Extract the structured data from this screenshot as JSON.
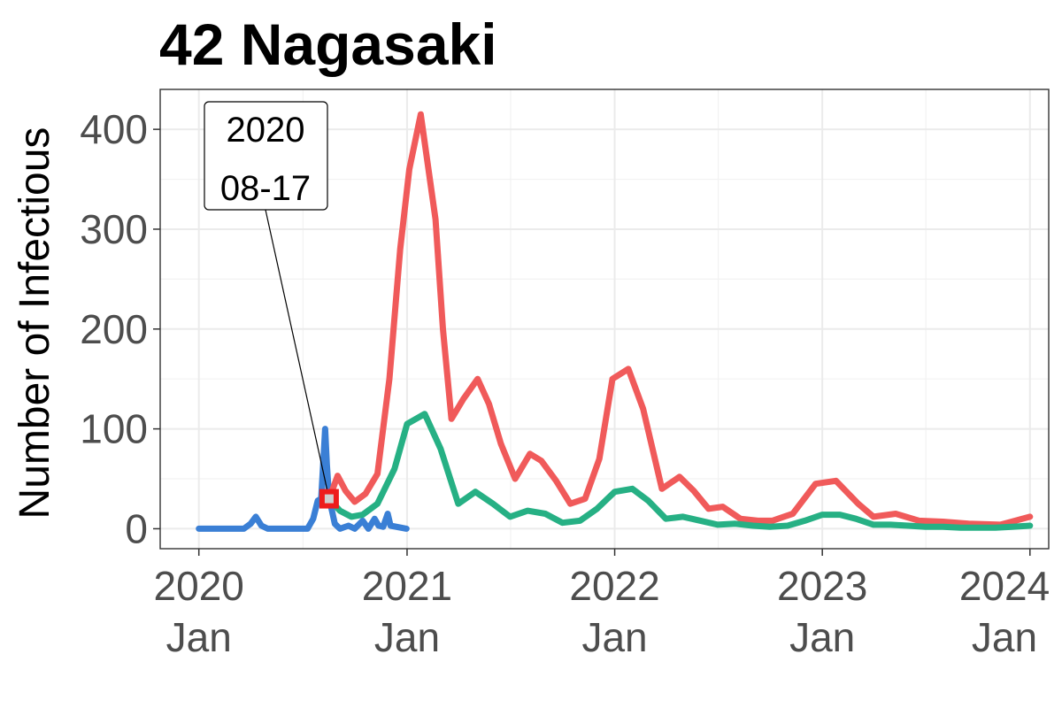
{
  "chart_data": {
    "type": "line",
    "title": "42 Nagasaki",
    "ylabel": "Number of Infectious",
    "xlabel": "",
    "x_range": [
      "2019-10-25",
      "2024-02-03"
    ],
    "ylim": [
      -20,
      440
    ],
    "y_ticks": [
      0,
      100,
      200,
      300,
      400
    ],
    "x_ticks": [
      {
        "date": "2020-01-01",
        "line1": "2020",
        "line2": "Jan"
      },
      {
        "date": "2021-01-01",
        "line1": "2021",
        "line2": "Jan"
      },
      {
        "date": "2022-01-01",
        "line1": "2022",
        "line2": "Jan"
      },
      {
        "date": "2023-01-01",
        "line1": "2023",
        "line2": "Jan"
      },
      {
        "date": "2024-01-01",
        "line1": "2024",
        "line2": "Jan"
      }
    ],
    "grid": true,
    "series": [
      {
        "color": "#3a7fd5",
        "points": [
          [
            "2020-01-01",
            0
          ],
          [
            "2020-03-20",
            0
          ],
          [
            "2020-04-01",
            5
          ],
          [
            "2020-04-10",
            12
          ],
          [
            "2020-04-20",
            3
          ],
          [
            "2020-05-01",
            0
          ],
          [
            "2020-07-10",
            0
          ],
          [
            "2020-07-20",
            10
          ],
          [
            "2020-07-28",
            28
          ],
          [
            "2020-08-03",
            30
          ],
          [
            "2020-08-07",
            70
          ],
          [
            "2020-08-10",
            100
          ],
          [
            "2020-08-13",
            65
          ],
          [
            "2020-08-17",
            30
          ],
          [
            "2020-08-22",
            18
          ],
          [
            "2020-08-27",
            5
          ],
          [
            "2020-09-05",
            0
          ],
          [
            "2020-09-20",
            3
          ],
          [
            "2020-10-01",
            0
          ],
          [
            "2020-10-15",
            8
          ],
          [
            "2020-10-25",
            0
          ],
          [
            "2020-11-05",
            10
          ],
          [
            "2020-11-12",
            3
          ],
          [
            "2020-11-20",
            2
          ],
          [
            "2020-11-28",
            15
          ],
          [
            "2020-12-03",
            3
          ],
          [
            "2020-12-31",
            0
          ]
        ]
      },
      {
        "color": "#f05a5a",
        "points": [
          [
            "2020-08-17",
            30
          ],
          [
            "2020-09-01",
            53
          ],
          [
            "2020-09-15",
            38
          ],
          [
            "2020-10-01",
            27
          ],
          [
            "2020-10-20",
            35
          ],
          [
            "2020-11-10",
            55
          ],
          [
            "2020-12-01",
            150
          ],
          [
            "2020-12-20",
            280
          ],
          [
            "2021-01-05",
            360
          ],
          [
            "2021-01-25",
            415
          ],
          [
            "2021-02-20",
            310
          ],
          [
            "2021-03-05",
            200
          ],
          [
            "2021-03-20",
            110
          ],
          [
            "2021-04-10",
            130
          ],
          [
            "2021-05-05",
            150
          ],
          [
            "2021-05-25",
            125
          ],
          [
            "2021-06-15",
            85
          ],
          [
            "2021-07-10",
            50
          ],
          [
            "2021-08-05",
            75
          ],
          [
            "2021-08-25",
            68
          ],
          [
            "2021-09-20",
            48
          ],
          [
            "2021-10-15",
            25
          ],
          [
            "2021-11-10",
            30
          ],
          [
            "2021-12-05",
            70
          ],
          [
            "2021-12-28",
            150
          ],
          [
            "2022-01-25",
            160
          ],
          [
            "2022-02-20",
            120
          ],
          [
            "2022-03-25",
            40
          ],
          [
            "2022-04-25",
            52
          ],
          [
            "2022-05-20",
            38
          ],
          [
            "2022-06-15",
            20
          ],
          [
            "2022-07-10",
            22
          ],
          [
            "2022-08-10",
            10
          ],
          [
            "2022-09-10",
            8
          ],
          [
            "2022-10-05",
            8
          ],
          [
            "2022-11-10",
            15
          ],
          [
            "2022-12-20",
            45
          ],
          [
            "2023-01-25",
            48
          ],
          [
            "2023-03-05",
            25
          ],
          [
            "2023-04-01",
            12
          ],
          [
            "2023-05-10",
            15
          ],
          [
            "2023-06-20",
            8
          ],
          [
            "2023-08-01",
            7
          ],
          [
            "2023-09-15",
            5
          ],
          [
            "2023-11-10",
            4
          ],
          [
            "2024-01-01",
            12
          ]
        ]
      },
      {
        "color": "#26b084",
        "points": [
          [
            "2020-08-17",
            30
          ],
          [
            "2020-09-05",
            18
          ],
          [
            "2020-09-25",
            12
          ],
          [
            "2020-10-15",
            14
          ],
          [
            "2020-11-10",
            25
          ],
          [
            "2020-12-10",
            60
          ],
          [
            "2021-01-01",
            105
          ],
          [
            "2021-02-01",
            115
          ],
          [
            "2021-03-01",
            80
          ],
          [
            "2021-04-01",
            25
          ],
          [
            "2021-05-01",
            37
          ],
          [
            "2021-06-01",
            25
          ],
          [
            "2021-07-01",
            12
          ],
          [
            "2021-08-01",
            18
          ],
          [
            "2021-09-01",
            15
          ],
          [
            "2021-10-01",
            6
          ],
          [
            "2021-11-01",
            8
          ],
          [
            "2021-12-01",
            20
          ],
          [
            "2022-01-01",
            37
          ],
          [
            "2022-02-01",
            40
          ],
          [
            "2022-03-01",
            28
          ],
          [
            "2022-04-01",
            10
          ],
          [
            "2022-05-01",
            12
          ],
          [
            "2022-06-01",
            8
          ],
          [
            "2022-07-01",
            4
          ],
          [
            "2022-08-01",
            5
          ],
          [
            "2022-09-01",
            3
          ],
          [
            "2022-10-01",
            2
          ],
          [
            "2022-11-01",
            3
          ],
          [
            "2022-12-01",
            8
          ],
          [
            "2023-01-01",
            14
          ],
          [
            "2023-02-01",
            14
          ],
          [
            "2023-03-01",
            10
          ],
          [
            "2023-04-01",
            4
          ],
          [
            "2023-05-01",
            4
          ],
          [
            "2023-06-01",
            3
          ],
          [
            "2023-07-01",
            2
          ],
          [
            "2023-08-01",
            2
          ],
          [
            "2023-09-01",
            1
          ],
          [
            "2023-10-01",
            1
          ],
          [
            "2023-11-01",
            1
          ],
          [
            "2023-12-01",
            2
          ],
          [
            "2024-01-01",
            3
          ]
        ]
      }
    ],
    "annotation": {
      "date": "2020-08-17",
      "value": 30,
      "line1": "2020",
      "line2": "08-17",
      "marker_color": "#ee1c1c"
    }
  }
}
